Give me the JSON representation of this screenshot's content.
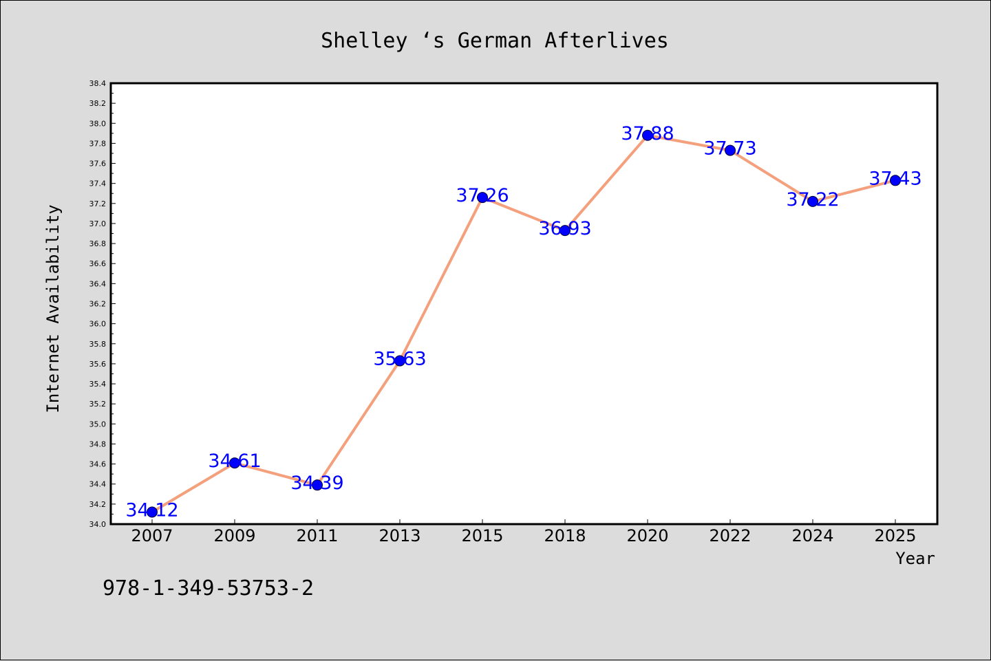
{
  "chart_data": {
    "type": "line",
    "title": "Shelley ‘s German Afterlives",
    "xlabel": "Year",
    "ylabel": "Internet Availability",
    "categories": [
      "2007",
      "2009",
      "2011",
      "2013",
      "2015",
      "2018",
      "2020",
      "2022",
      "2024",
      "2025"
    ],
    "values": [
      34.12,
      34.61,
      34.39,
      35.63,
      37.26,
      36.93,
      37.88,
      37.73,
      37.22,
      37.43
    ],
    "data_labels": [
      "34.12",
      "34.61",
      "34.39",
      "35.63",
      "37.26",
      "36.93",
      "37.88",
      "37.73",
      "37.22",
      "37.43"
    ],
    "ylim": [
      34.0,
      38.4
    ],
    "yticks": [
      "34.0",
      "34.2",
      "34.4",
      "34.6",
      "34.8",
      "35.0",
      "35.2",
      "35.4",
      "35.6",
      "35.8",
      "36.0",
      "36.2",
      "36.4",
      "36.6",
      "36.8",
      "37.0",
      "37.2",
      "37.4",
      "37.6",
      "37.8",
      "38.0",
      "38.2",
      "38.4"
    ],
    "grid": false,
    "legend": "none",
    "colors": {
      "line": "#f4a07c",
      "marker": "#0000ff",
      "label": "#0000ff",
      "background": "#dcdcdc",
      "plot_area": "#ffffff"
    }
  },
  "footer": {
    "isbn": "978-1-349-53753-2"
  }
}
